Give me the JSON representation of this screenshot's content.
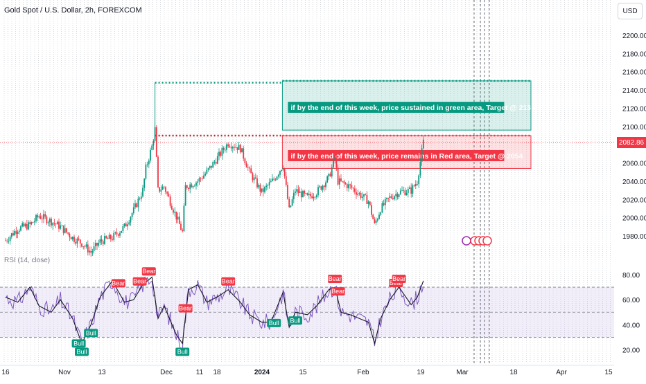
{
  "header": {
    "title": "Gold Spot / U.S. Dollar, 2h, FOREXCOM",
    "currency_button": "USD",
    "rsi_label": "RSI (14, close)",
    "last_price": "2082.86"
  },
  "colors": {
    "up": "#089981",
    "down": "#f23645",
    "rsi_line": "#7e57c2",
    "rsi_ma": "#131722",
    "rsi_band": "#7e57c2",
    "green_box": "#089981",
    "red_box": "#f23645",
    "grid": "#c7c9d1"
  },
  "chart_data": [
    {
      "type": "candlestick",
      "title": "Gold Spot / U.S. Dollar, 2h, FOREXCOM",
      "y_ticks": [
        "2200.00",
        "2180.00",
        "2160.00",
        "2140.00",
        "2120.00",
        "2100.00",
        "2080.00",
        "2060.00",
        "2040.00",
        "2020.00",
        "2000.00",
        "1980.00"
      ],
      "x_ticks": [
        "16",
        "Nov",
        "13",
        "Dec",
        "11",
        "18",
        "2024",
        "15",
        "Feb",
        "19",
        "Mar",
        "18",
        "Apr",
        "15"
      ],
      "ylim": [
        1970,
        2215
      ],
      "last_price": 2082.86,
      "price_path": [
        [
          "Oct 16",
          1975
        ],
        [
          "Oct 20",
          1988
        ],
        [
          "Oct 24",
          1992
        ],
        [
          "Oct 27",
          2002
        ],
        [
          "Oct 31",
          1996
        ],
        [
          "Nov 3",
          1990
        ],
        [
          "Nov 7",
          1978
        ],
        [
          "Nov 10",
          1972
        ],
        [
          "Nov 13",
          1962
        ],
        [
          "Nov 16",
          1974
        ],
        [
          "Nov 20",
          1978
        ],
        [
          "Nov 24",
          1990
        ],
        [
          "Nov 27",
          2008
        ],
        [
          "Nov 30",
          2030
        ],
        [
          "Dec 1",
          2054
        ],
        [
          "Dec 3",
          2078
        ],
        [
          "Dec 4",
          2097
        ],
        [
          "Dec 5",
          2030
        ],
        [
          "Dec 7",
          2034
        ],
        [
          "Dec 11",
          2001
        ],
        [
          "Dec 13",
          1984
        ],
        [
          "Dec 14",
          2034
        ],
        [
          "Dec 18",
          2040
        ],
        [
          "Dec 21",
          2050
        ],
        [
          "Dec 25",
          2068
        ],
        [
          "Dec 28",
          2082
        ],
        [
          "Jan 1",
          2076
        ],
        [
          "Jan 4",
          2050
        ],
        [
          "Jan 8",
          2028
        ],
        [
          "Jan 12",
          2042
        ],
        [
          "Jan 15",
          2058
        ],
        [
          "Jan 17",
          2008
        ],
        [
          "Jan 19",
          2030
        ],
        [
          "Jan 23",
          2022
        ],
        [
          "Jan 26",
          2028
        ],
        [
          "Jan 30",
          2044
        ],
        [
          "Feb 1",
          2065
        ],
        [
          "Feb 2",
          2040
        ],
        [
          "Feb 6",
          2034
        ],
        [
          "Feb 9",
          2026
        ],
        [
          "Feb 12",
          2018
        ],
        [
          "Feb 14",
          1992
        ],
        [
          "Feb 16",
          2010
        ],
        [
          "Feb 19",
          2022
        ],
        [
          "Feb 22",
          2028
        ],
        [
          "Feb 26",
          2030
        ],
        [
          "Feb 28",
          2040
        ],
        [
          "Mar 1",
          2082.86
        ]
      ],
      "annotations": [
        {
          "text": "if by the end of this week, price sustained in green area, Target @ 2135",
          "zone": [
            2096,
            2150
          ],
          "from": "Jan 15",
          "to": "Mar 19",
          "color": "green"
        },
        {
          "text": "if by the end of this week, price remains in Red area, Target @ 2054",
          "zone": [
            2054,
            2090
          ],
          "from": "Jan 15",
          "to": "Mar 19",
          "color": "red"
        }
      ],
      "dotted_levels": [
        {
          "value": 2148,
          "from": "Dec 4",
          "to": "Jan 15",
          "color": "green"
        },
        {
          "value": 2090,
          "from": "Dec 4",
          "to": "Jan 15",
          "color": "red"
        }
      ]
    },
    {
      "type": "line",
      "title": "RSI (14, close)",
      "y_ticks": [
        "80.00",
        "60.00",
        "40.00",
        "20.00"
      ],
      "ylim": [
        15,
        88
      ],
      "bands": [
        30,
        50,
        70
      ],
      "rsi_path": [
        [
          "Oct 16",
          62
        ],
        [
          "Oct 20",
          58
        ],
        [
          "Oct 24",
          70
        ],
        [
          "Oct 27",
          55
        ],
        [
          "Oct 31",
          50
        ],
        [
          "Nov 3",
          60
        ],
        [
          "Nov 7",
          45
        ],
        [
          "Nov 10",
          25
        ],
        [
          "Nov 13",
          40
        ],
        [
          "Nov 16",
          62
        ],
        [
          "Nov 20",
          75
        ],
        [
          "Nov 24",
          58
        ],
        [
          "Nov 27",
          60
        ],
        [
          "Nov 30",
          72
        ],
        [
          "Dec 3",
          78
        ],
        [
          "Dec 5",
          45
        ],
        [
          "Dec 7",
          55
        ],
        [
          "Dec 11",
          32
        ],
        [
          "Dec 13",
          25
        ],
        [
          "Dec 15",
          68
        ],
        [
          "Dec 18",
          72
        ],
        [
          "Dec 21",
          58
        ],
        [
          "Dec 25",
          63
        ],
        [
          "Dec 28",
          68
        ],
        [
          "Jan 1",
          58
        ],
        [
          "Jan 4",
          48
        ],
        [
          "Jan 8",
          42
        ],
        [
          "Jan 11",
          42
        ],
        [
          "Jan 15",
          66
        ],
        [
          "Jan 17",
          38
        ],
        [
          "Jan 19",
          50
        ],
        [
          "Jan 23",
          48
        ],
        [
          "Jan 26",
          55
        ],
        [
          "Jan 30",
          68
        ],
        [
          "Feb 1",
          70
        ],
        [
          "Feb 3",
          50
        ],
        [
          "Feb 6",
          48
        ],
        [
          "Feb 9",
          45
        ],
        [
          "Feb 12",
          42
        ],
        [
          "Feb 14",
          25
        ],
        [
          "Feb 16",
          45
        ],
        [
          "Feb 19",
          60
        ],
        [
          "Feb 22",
          70
        ],
        [
          "Feb 26",
          56
        ],
        [
          "Feb 28",
          62
        ],
        [
          "Mar 1",
          75
        ]
      ],
      "signals": [
        {
          "text": "Bear",
          "date": "Nov 22"
        },
        {
          "text": "Bear",
          "date": "Nov 29"
        },
        {
          "text": "Bear",
          "date": "Dec 2"
        },
        {
          "text": "Bear",
          "date": "Dec 14"
        },
        {
          "text": "Bear",
          "date": "Dec 28"
        },
        {
          "text": "Bear",
          "date": "Feb 1"
        },
        {
          "text": "Bear",
          "date": "Feb 2"
        },
        {
          "text": "Bear",
          "date": "Feb 21"
        },
        {
          "text": "Bear",
          "date": "Feb 22"
        },
        {
          "text": "Bull",
          "date": "Nov 9"
        },
        {
          "text": "Bull",
          "date": "Nov 10"
        },
        {
          "text": "Bull",
          "date": "Nov 13"
        },
        {
          "text": "Bull",
          "date": "Dec 13"
        },
        {
          "text": "Bull",
          "date": "Jan 12"
        },
        {
          "text": "Bull",
          "date": "Jan 19"
        }
      ]
    }
  ]
}
